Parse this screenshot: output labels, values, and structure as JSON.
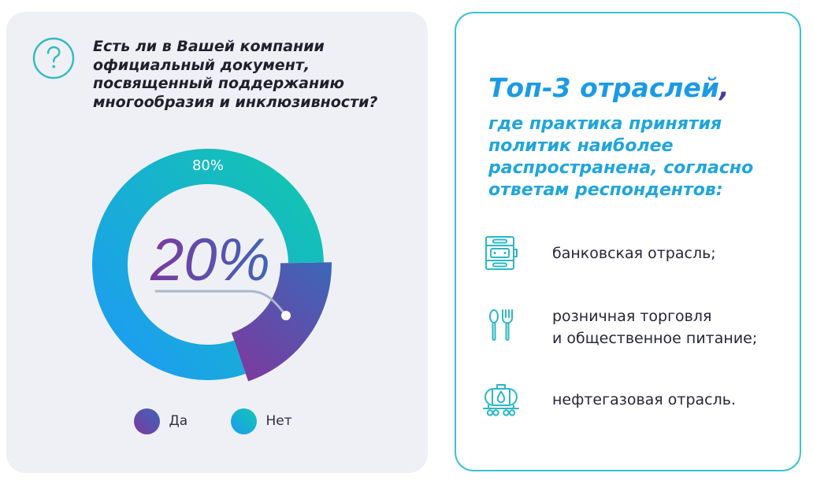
{
  "question": {
    "icon": "question-icon",
    "lines": [
      "Есть ли в Вашей компании",
      "официальный документ,",
      "посвященный поддержанию",
      "многообразия и инклюзивности?"
    ]
  },
  "chart_data": {
    "type": "pie",
    "donut": true,
    "categories": [
      "Да",
      "Нет"
    ],
    "values": [
      20,
      80
    ],
    "data_labels": [
      "20%",
      "80%"
    ],
    "colors": [
      [
        "#7c3a9e",
        "#3d66b8"
      ],
      [
        "#1c9cf3",
        "#13c6ae"
      ]
    ],
    "legend_position": "bottom"
  },
  "top3": {
    "title": "Топ-3 отраслей",
    "title_comma": ",",
    "subtitle_lines": [
      "где практика принятия",
      "политик наиболее",
      "распространена, согласно",
      "ответам респондентов:"
    ],
    "items": [
      {
        "icon": "bank-icon",
        "lines": [
          "банковская отрасль;"
        ]
      },
      {
        "icon": "cutlery-icon",
        "lines": [
          "розничная торговля",
          "и общественное питание;"
        ]
      },
      {
        "icon": "oil-tank-car-icon",
        "lines": [
          "нефтегазовая отрасль."
        ]
      }
    ]
  },
  "colors": {
    "page_bg": "#ffffff",
    "left_panel_bg": "#eff0f5",
    "question_icon": "#2ebac0",
    "question_text": "#1f1f2d",
    "right_panel_border": "#3bc3d1",
    "title": "#1b9be3",
    "title_comma": "#4a3c97",
    "subtitle": "#1fa5db",
    "item_icon": "#2bb7c6",
    "item_text": "#262636",
    "legend_text": "#30303c",
    "data_label_light": "#ffffff",
    "connector": "#a8b7cb"
  }
}
